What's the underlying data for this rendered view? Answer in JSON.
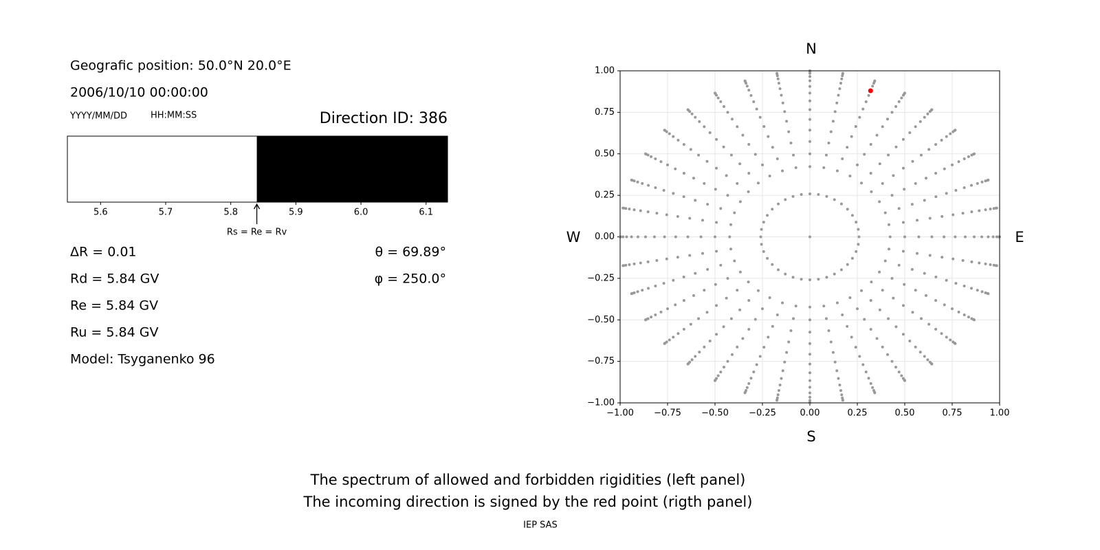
{
  "info": {
    "position": "Geografic position: 50.0°N 20.0°E",
    "datetime": "2006/10/10 00:00:00",
    "date_format": "YYYY/MM/DD",
    "time_format": "HH:MM:SS",
    "direction_id": "Direction ID: 386",
    "delta_r": "ΔR = 0.01",
    "rd": "Rd = 5.84 GV",
    "re": "Re = 5.84 GV",
    "ru": "Ru = 5.84 GV",
    "model": "Model: Tsyganenko 96",
    "theta": "θ = 69.89°",
    "phi": "φ = 250.0°"
  },
  "chart_data": [
    {
      "type": "spectrum",
      "xlim": [
        5.549,
        6.133
      ],
      "xticks": [
        5.6,
        5.7,
        5.8,
        5.9,
        {
          "value": 6.0,
          "label": "6.0"
        },
        6.1
      ],
      "bands": [
        {
          "from": 5.549,
          "to": 5.84,
          "color": "#ffffff"
        },
        {
          "from": 5.84,
          "to": 6.133,
          "color": "#000000"
        }
      ],
      "arrow_at": 5.84,
      "arrow_label": "Rs = Re = Rv"
    },
    {
      "type": "scatter",
      "xlim": [
        -1,
        1
      ],
      "ylim": [
        -1,
        1
      ],
      "xticks": [
        {
          "value": -1,
          "label": "−1.00"
        },
        {
          "value": -0.75,
          "label": "−0.75"
        },
        {
          "value": -0.5,
          "label": "−0.50"
        },
        {
          "value": -0.25,
          "label": "−0.25"
        },
        {
          "value": 0,
          "label": "0.00"
        },
        {
          "value": 0.25,
          "label": "0.25"
        },
        {
          "value": 0.5,
          "label": "0.50"
        },
        {
          "value": 0.75,
          "label": "0.75"
        },
        {
          "value": 1,
          "label": "1.00"
        }
      ],
      "yticks": [
        {
          "value": -1,
          "label": "−1.00"
        },
        {
          "value": -0.75,
          "label": "−0.75"
        },
        {
          "value": -0.5,
          "label": "−0.50"
        },
        {
          "value": -0.25,
          "label": "−0.25"
        },
        {
          "value": 0,
          "label": "0.00"
        },
        {
          "value": 0.25,
          "label": "0.25"
        },
        {
          "value": 0.5,
          "label": "0.50"
        },
        {
          "value": 0.75,
          "label": "0.75"
        },
        {
          "value": 1,
          "label": "1.00"
        }
      ],
      "grid": true,
      "color": "#999999",
      "azimuths": [
        0,
        10,
        20,
        30,
        40,
        50,
        60,
        70,
        80,
        90,
        100,
        110,
        120,
        130,
        140,
        150,
        160,
        170,
        180,
        190,
        200,
        210,
        220,
        230,
        240,
        250,
        260,
        270,
        280,
        290,
        300,
        310,
        320,
        330,
        340,
        350
      ],
      "radii": [
        0.259,
        0.423,
        0.5,
        0.574,
        0.643,
        0.707,
        0.766,
        0.819,
        0.866,
        0.906,
        0.94,
        0.966,
        0.985,
        0.996,
        1.0
      ],
      "center_point": {
        "x": 0,
        "y": 0
      },
      "highlight": {
        "x": 0.32,
        "y": 0.88,
        "color": "#ff0000"
      },
      "north": "N",
      "south": "S",
      "west": "W",
      "east": "E"
    }
  ],
  "footer": {
    "line1": "The spectrum of allowed and forbidden rigidities (left panel)",
    "line2": "The incoming direction is signed by the red point (rigth panel)",
    "credit": "IEP SAS"
  }
}
